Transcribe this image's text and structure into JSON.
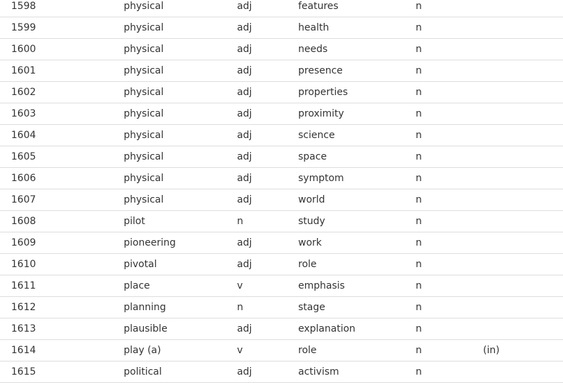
{
  "rows": [
    [
      "1598",
      "physical",
      "adj",
      "features",
      "n",
      ""
    ],
    [
      "1599",
      "physical",
      "adj",
      "health",
      "n",
      ""
    ],
    [
      "1600",
      "physical",
      "adj",
      "needs",
      "n",
      ""
    ],
    [
      "1601",
      "physical",
      "adj",
      "presence",
      "n",
      ""
    ],
    [
      "1602",
      "physical",
      "adj",
      "properties",
      "n",
      ""
    ],
    [
      "1603",
      "physical",
      "adj",
      "proximity",
      "n",
      ""
    ],
    [
      "1604",
      "physical",
      "adj",
      "science",
      "n",
      ""
    ],
    [
      "1605",
      "physical",
      "adj",
      "space",
      "n",
      ""
    ],
    [
      "1606",
      "physical",
      "adj",
      "symptom",
      "n",
      ""
    ],
    [
      "1607",
      "physical",
      "adj",
      "world",
      "n",
      ""
    ],
    [
      "1608",
      "pilot",
      "n",
      "study",
      "n",
      ""
    ],
    [
      "1609",
      "pioneering",
      "adj",
      "work",
      "n",
      ""
    ],
    [
      "1610",
      "pivotal",
      "adj",
      "role",
      "n",
      ""
    ],
    [
      "1611",
      "place",
      "v",
      "emphasis",
      "n",
      ""
    ],
    [
      "1612",
      "planning",
      "n",
      "stage",
      "n",
      ""
    ],
    [
      "1613",
      "plausible",
      "adj",
      "explanation",
      "n",
      ""
    ],
    [
      "1614",
      "play (a)",
      "v",
      "role",
      "n",
      "(in)"
    ],
    [
      "1615",
      "political",
      "adj",
      "activism",
      "n",
      ""
    ]
  ]
}
